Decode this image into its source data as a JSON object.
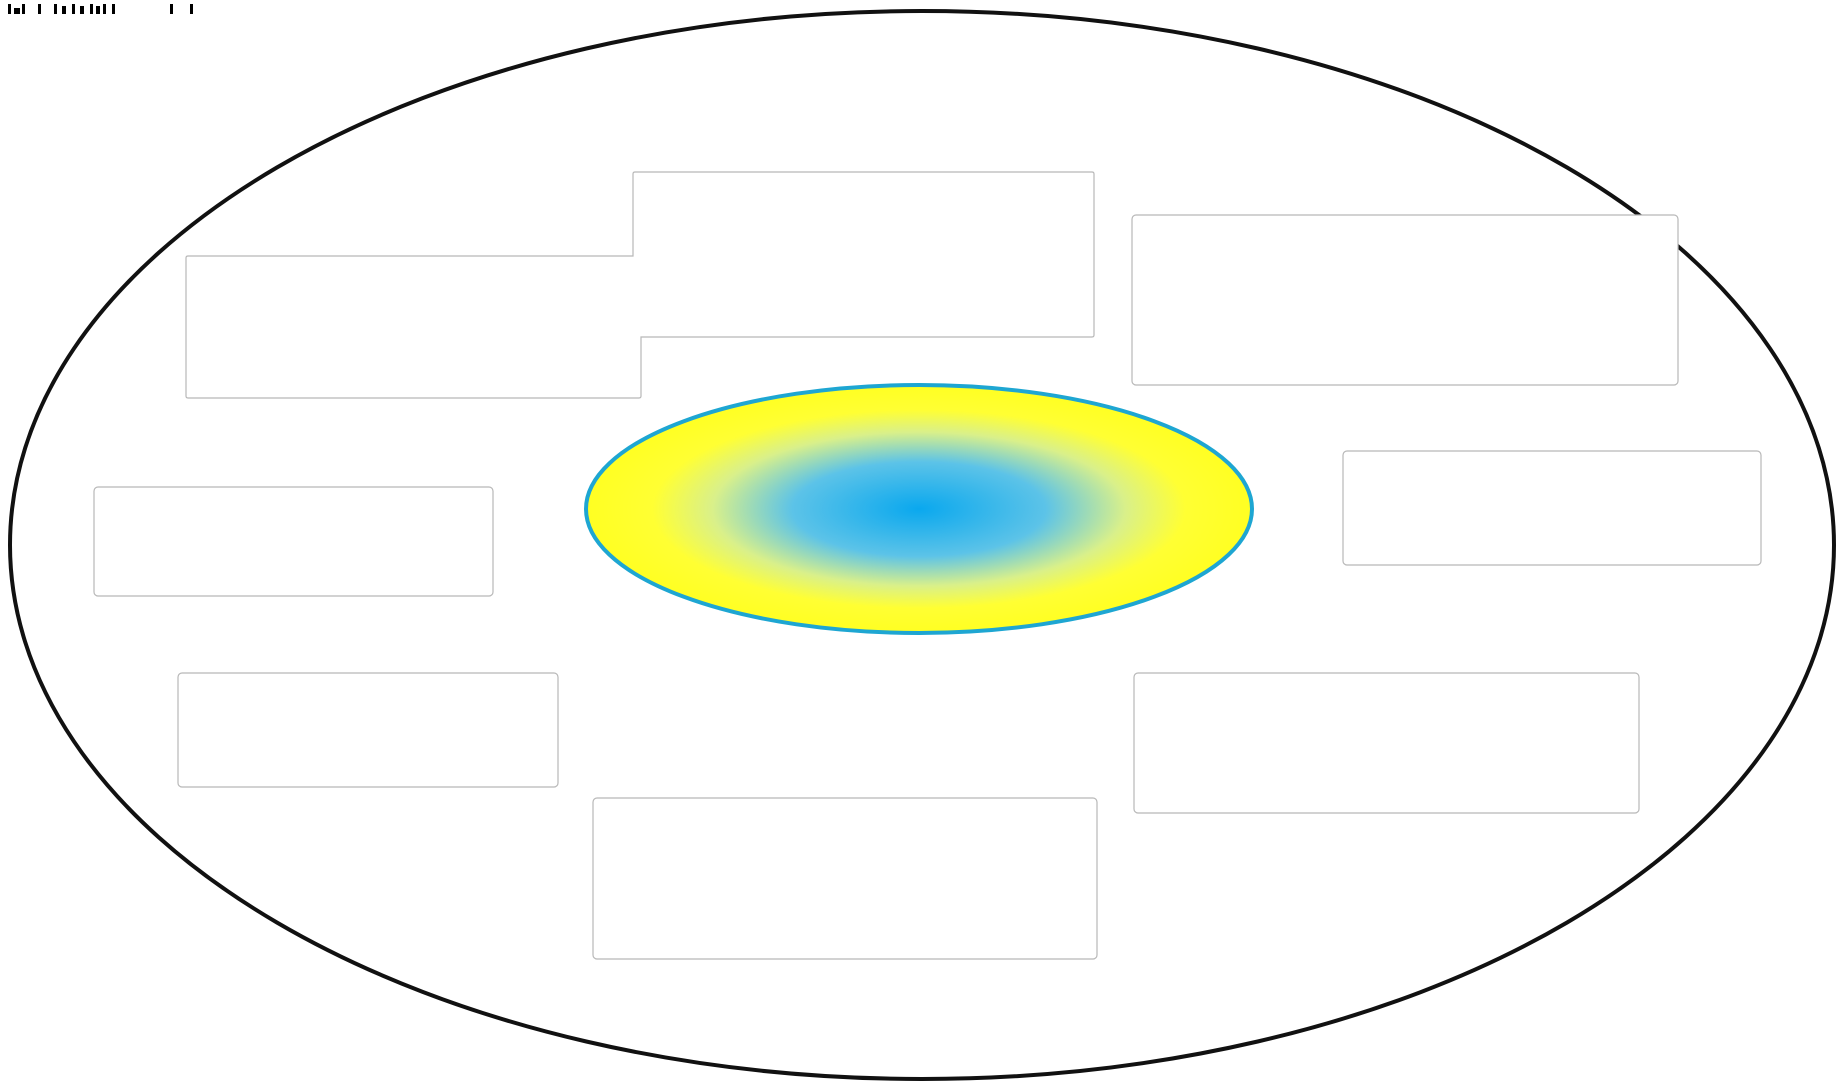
{
  "diagram": {
    "colors": {
      "outer_stroke": "#111111",
      "core_fill_center": "#0aa8ee",
      "core_fill_edge": "#ffff33",
      "core_stroke": "#1ea6d2",
      "box_stroke": "#b8b8b8"
    },
    "core_label": "",
    "boxes": [
      {
        "label": ""
      },
      {
        "label": ""
      },
      {
        "label": ""
      },
      {
        "label": ""
      },
      {
        "label": ""
      },
      {
        "label": ""
      },
      {
        "label": ""
      },
      {
        "label": ""
      }
    ]
  }
}
